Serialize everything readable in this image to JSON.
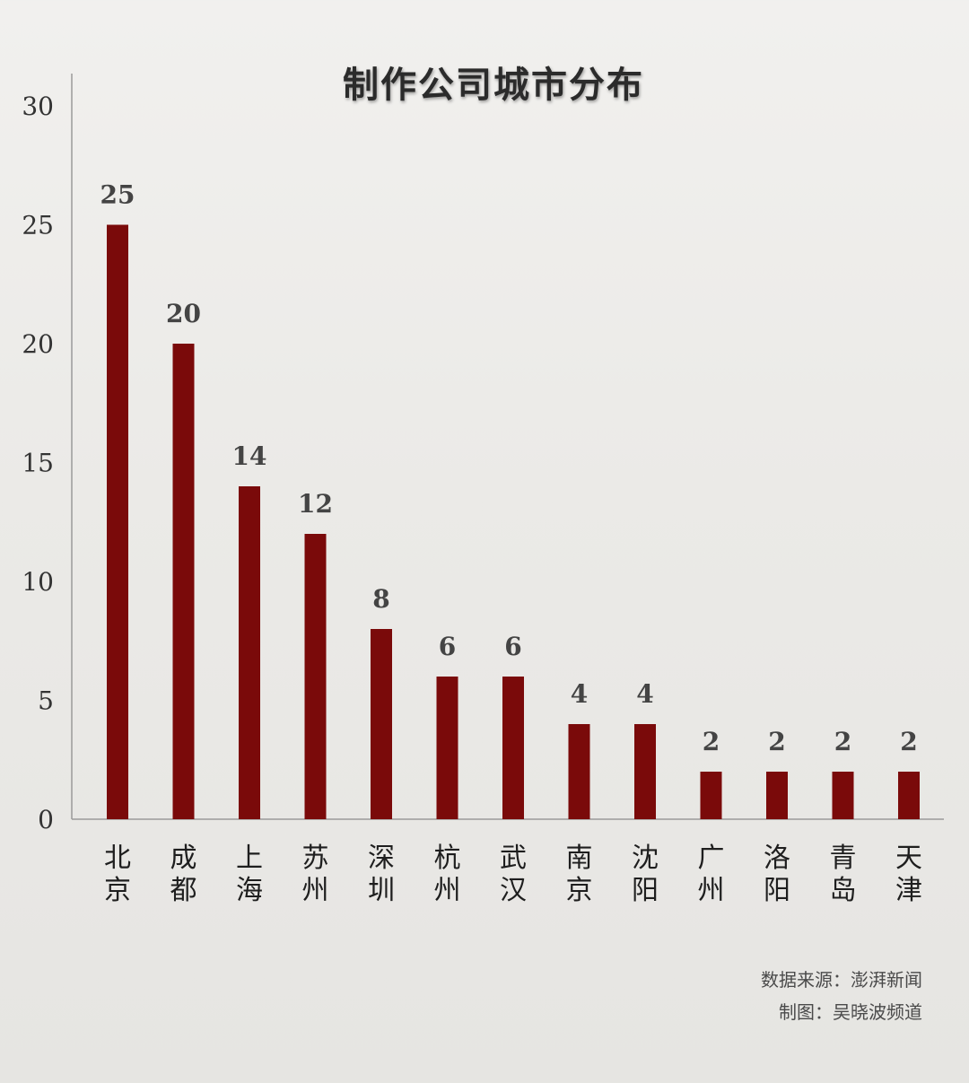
{
  "chart_data": {
    "type": "bar",
    "title": "制作公司城市分布",
    "categories": [
      "北京",
      "成都",
      "上海",
      "苏州",
      "深圳",
      "杭州",
      "武汉",
      "南京",
      "沈阳",
      "广州",
      "洛阳",
      "青岛",
      "天津"
    ],
    "values": [
      25,
      20,
      14,
      12,
      8,
      6,
      6,
      4,
      4,
      2,
      2,
      2,
      2
    ],
    "ylim": [
      0,
      30
    ],
    "yticks": [
      0,
      5,
      10,
      15,
      20,
      25,
      30
    ],
    "xlabel": "",
    "ylabel": "",
    "grid": false,
    "bar_color": "#7a0a0a",
    "data_labels": true
  },
  "credits": {
    "source": "数据来源：澎湃新闻",
    "author": "制图：吴晓波频道"
  }
}
